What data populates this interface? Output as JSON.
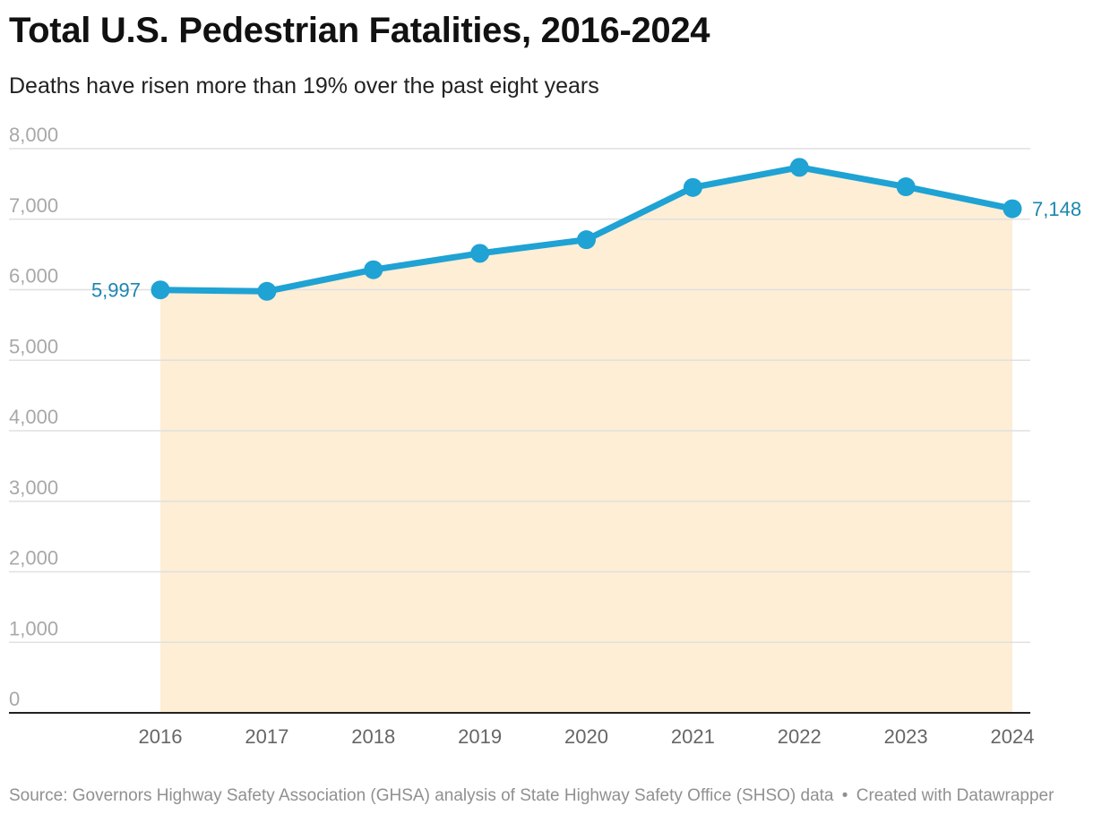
{
  "header": {
    "title": "Total U.S. Pedestrian Fatalities, 2016-2024",
    "subtitle": "Deaths have risen more than 19% over the past eight years"
  },
  "footer": {
    "source": "Source: Governors Highway Safety Association (GHSA) analysis of State Highway Safety Office (SHSO) data",
    "separator": "•",
    "credit": "Created with Datawrapper"
  },
  "colors": {
    "line": "#1fa2d4",
    "area": "#fdeed5",
    "label": "#1b87b0",
    "grid": "#e0e0e0",
    "axis": "#222222",
    "tick_text": "#a8a8a8",
    "xtick_text": "#666666"
  },
  "chart_data": {
    "type": "area",
    "title": "Total U.S. Pedestrian Fatalities, 2016-2024",
    "subtitle": "Deaths have risen more than 19% over the past eight years",
    "xlabel": "",
    "ylabel": "",
    "categories": [
      "2016",
      "2017",
      "2018",
      "2019",
      "2020",
      "2021",
      "2022",
      "2023",
      "2024"
    ],
    "series": [
      {
        "name": "Pedestrian fatalities",
        "values": [
          5997,
          5977,
          6283,
          6516,
          6709,
          7450,
          7735,
          7460,
          7148
        ]
      }
    ],
    "ylim": [
      0,
      8000
    ],
    "yticks": [
      0,
      1000,
      2000,
      3000,
      4000,
      5000,
      6000,
      7000,
      8000
    ],
    "ytick_labels": [
      "0",
      "1,000",
      "2,000",
      "3,000",
      "4,000",
      "5,000",
      "6,000",
      "7,000",
      "8,000"
    ],
    "annotations": [
      {
        "index": 0,
        "text": "5,997",
        "side": "left"
      },
      {
        "index": 8,
        "text": "7,148",
        "side": "right"
      }
    ],
    "grid": true,
    "legend": "none"
  }
}
